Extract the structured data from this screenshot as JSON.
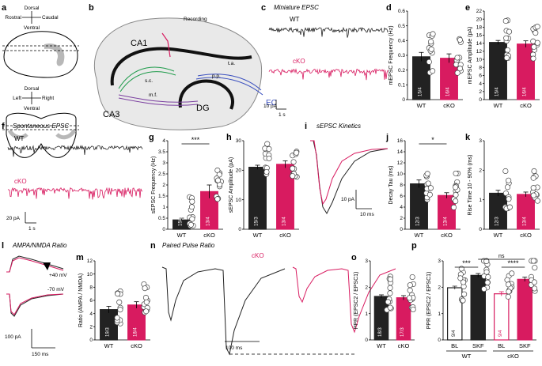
{
  "colors": {
    "wt": "#222222",
    "cko": "#d81b60",
    "gray": "#b8b8b8"
  },
  "panels": {
    "a": {
      "letter": "a",
      "dorsal": "Dorsal",
      "ventral": "Ventral",
      "rostral": "Rostral",
      "caudal": "Caudal",
      "left": "Left",
      "right": "Right"
    },
    "b": {
      "letter": "b",
      "recording": "Recording",
      "ca1": "CA1",
      "ca3": "CA3",
      "dg": "DG",
      "ec": "EC",
      "sc": "s.c.",
      "mf": "m.f.",
      "pp": "p.p.",
      "ta": "t.a."
    },
    "c": {
      "letter": "c",
      "title": "Miniature EPSC",
      "wt": "WT",
      "cko": "cKO",
      "scale_y": "10 pA",
      "scale_x": "1 s"
    },
    "f": {
      "letter": "f",
      "title": "Spontaneous EPSC",
      "wt": "WT",
      "cko": "cKO",
      "scale_y": "20 pA",
      "scale_x": "1 s"
    },
    "i": {
      "letter": "i",
      "title": "sEPSC Kinetics",
      "scale_y": "10 pA",
      "scale_x": "10 ms"
    },
    "l": {
      "letter": "l",
      "title": "AMPA/NMDA Ratio",
      "v1": "+40 mV",
      "v2": "-70 mV",
      "scale_y": "100 pA",
      "scale_x": "150 ms"
    },
    "n": {
      "letter": "n",
      "title": "Paired Pulse Ratio",
      "cko": "cKO",
      "scale_x": "100 ms"
    },
    "p": {
      "letter": "p",
      "ns": "ns"
    }
  },
  "chart_data": [
    {
      "id": "d",
      "type": "bar",
      "ylabel": "mEPSC Frequency (Hz)",
      "ylim": [
        0,
        0.6
      ],
      "ticks": [
        "0",
        "0.1",
        "0.2",
        "0.3",
        "0.4",
        "0.5",
        "0.6"
      ],
      "categories": [
        "WT",
        "cKO"
      ],
      "values": [
        0.29,
        0.28
      ],
      "errors": [
        0.03,
        0.03
      ],
      "n_labels": [
        "15/4",
        "16/4"
      ]
    },
    {
      "id": "e",
      "type": "bar",
      "ylabel": "mEPSC Amplitude (pA)",
      "ylim": [
        0,
        22
      ],
      "ticks": [
        "0",
        "2",
        "4",
        "6",
        "8",
        "10",
        "12",
        "14",
        "16",
        "18",
        "20",
        "22"
      ],
      "categories": [
        "WT",
        "cKO"
      ],
      "values": [
        14.2,
        13.8
      ],
      "errors": [
        0.5,
        0.8
      ],
      "n_labels": [
        "15/4",
        "16/4"
      ]
    },
    {
      "id": "g",
      "type": "bar",
      "ylabel": "sEPSC Frequency (Hz)",
      "ylim": [
        0,
        4
      ],
      "ticks": [
        "0",
        "0.5",
        "1",
        "1.5",
        "2",
        "2.5",
        "3",
        "3.5",
        "4"
      ],
      "categories": [
        "WT",
        "cKO"
      ],
      "values": [
        0.42,
        1.7
      ],
      "errors": [
        0.08,
        0.3
      ],
      "n_labels": [
        "15/3",
        "13/4"
      ],
      "sig": "***"
    },
    {
      "id": "h",
      "type": "bar",
      "ylabel": "sEPSC Amplitude (pA)",
      "ylim": [
        0,
        30
      ],
      "ticks": [
        "0",
        "10",
        "20",
        "30"
      ],
      "categories": [
        "WT",
        "cKO"
      ],
      "values": [
        21,
        22
      ],
      "errors": [
        0.7,
        1.2
      ],
      "n_labels": [
        "15/3",
        "13/4"
      ]
    },
    {
      "id": "j",
      "type": "bar",
      "ylabel": "Decay Tau (ms)",
      "ylim": [
        0,
        16
      ],
      "ticks": [
        "0",
        "2",
        "4",
        "6",
        "8",
        "10",
        "12",
        "14",
        "16"
      ],
      "categories": [
        "WT",
        "cKO"
      ],
      "values": [
        8.2,
        6.1
      ],
      "errors": [
        0.7,
        0.5
      ],
      "n_labels": [
        "12/3",
        "13/4"
      ],
      "sig": "*"
    },
    {
      "id": "k",
      "type": "bar",
      "ylabel": "Rise Time 10 - 90% (ms)",
      "ylim": [
        0,
        3
      ],
      "ticks": [
        "0",
        "1",
        "2",
        "3"
      ],
      "categories": [
        "WT",
        "cKO"
      ],
      "values": [
        1.22,
        1.18
      ],
      "errors": [
        0.1,
        0.08
      ],
      "n_labels": [
        "12/3",
        "13/4"
      ]
    },
    {
      "id": "m",
      "type": "bar",
      "ylabel": "Ratio (AMPA / NMDA)",
      "ylim": [
        0,
        12
      ],
      "ticks": [
        "0",
        "2",
        "4",
        "6",
        "8",
        "10",
        "12"
      ],
      "categories": [
        "WT",
        "cKO"
      ],
      "values": [
        4.6,
        5.3
      ],
      "errors": [
        0.5,
        0.5
      ],
      "n_labels": [
        "19/3",
        "18/4"
      ]
    },
    {
      "id": "o",
      "type": "bar",
      "ylabel": "PPR (EPSC2 / EPSC1)",
      "ylim": [
        0,
        3
      ],
      "ticks": [
        "0",
        "1",
        "2",
        "3"
      ],
      "categories": [
        "WT",
        "cKO"
      ],
      "values": [
        1.65,
        1.6
      ],
      "errors": [
        0.06,
        0.08
      ],
      "n_labels": [
        "18/3",
        "17/3"
      ]
    },
    {
      "id": "p",
      "type": "bar",
      "ylabel": "PPR (EPSC2 / EPSC1)",
      "ylim": [
        0,
        3
      ],
      "ticks": [
        "0",
        "1",
        "2",
        "3"
      ],
      "categories": [
        "BL",
        "SKF",
        "BL",
        "SKF"
      ],
      "groups": [
        "WT",
        "cKO"
      ],
      "values": [
        1.98,
        2.45,
        1.75,
        2.3
      ],
      "errors": [
        0.06,
        0.07,
        0.08,
        0.08
      ],
      "n_labels": [
        "9/4",
        "",
        "9/4",
        ""
      ],
      "sig": [
        "***",
        "ns",
        "****"
      ]
    }
  ]
}
